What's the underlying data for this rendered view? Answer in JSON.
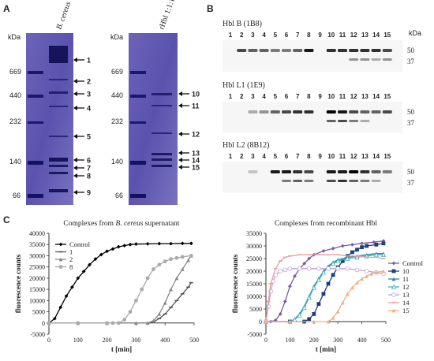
{
  "panel_labels": {
    "a": "A",
    "b": "B",
    "c": "C"
  },
  "gel_a": {
    "kda_label": "kDa",
    "markers": [
      "669",
      "440",
      "232",
      "140",
      "66"
    ],
    "left_lane_label": "B. cereus",
    "right_lane_label": "rHbl 1:1:1",
    "left_bands": [
      "1",
      "2",
      "3",
      "4",
      "5",
      "6",
      "7",
      "8",
      "9"
    ],
    "right_bands": [
      "10",
      "11",
      "12",
      "13",
      "14",
      "15"
    ]
  },
  "blots": [
    {
      "title": "Hbl B (1B8)",
      "lanes": [
        "1",
        "2",
        "3",
        "4",
        "5",
        "6",
        "7",
        "8",
        "9",
        "10",
        "11",
        "12",
        "13",
        "14",
        "15"
      ],
      "markers": [
        "50",
        "37"
      ],
      "kda_label": "kDa"
    },
    {
      "title": "Hbl L1 (1E9)",
      "lanes": [
        "1",
        "2",
        "3",
        "4",
        "5",
        "6",
        "7",
        "8",
        "9",
        "10",
        "11",
        "12",
        "13",
        "14",
        "15"
      ],
      "markers": [
        "50",
        "37"
      ]
    },
    {
      "title": "Hbl L2 (8B12)",
      "lanes": [
        "1",
        "2",
        "3",
        "4",
        "5",
        "6",
        "7",
        "8",
        "9",
        "10",
        "11",
        "12",
        "13",
        "14",
        "15"
      ],
      "markers": [
        "50",
        "37"
      ]
    }
  ],
  "chart_data": [
    {
      "type": "line",
      "title_prefix": "Complexes from ",
      "title_italic": "B. cereus",
      "title_suffix": " supernatant",
      "xlabel": "t [min]",
      "ylabel": "fluorescence counts",
      "xlim": [
        0,
        500
      ],
      "ylim": [
        -5000,
        40000
      ],
      "xticks": [
        0,
        100,
        200,
        300,
        400,
        500
      ],
      "yticks": [
        -5000,
        0,
        5000,
        10000,
        15000,
        20000,
        25000,
        30000,
        35000,
        40000
      ],
      "legend_position": "top-left",
      "series": [
        {
          "name": "Control",
          "color": "#000000",
          "marker": "diamond",
          "x": [
            0,
            20,
            40,
            60,
            80,
            100,
            120,
            140,
            160,
            180,
            200,
            220,
            240,
            260,
            280,
            300,
            340,
            380,
            420,
            460,
            490
          ],
          "y": [
            0,
            2000,
            7000,
            12000,
            16000,
            20000,
            23000,
            26000,
            28500,
            30500,
            32000,
            33000,
            34000,
            34500,
            35000,
            35200,
            35300,
            35400,
            35400,
            35500,
            35500
          ]
        },
        {
          "name": "1",
          "color": "#555555",
          "marker": "dash",
          "x": [
            0,
            100,
            200,
            300,
            340,
            360,
            380,
            400,
            420,
            440,
            460,
            480,
            490
          ],
          "y": [
            0,
            0,
            0,
            0,
            0,
            500,
            2000,
            4000,
            7000,
            10000,
            13000,
            16000,
            18000
          ]
        },
        {
          "name": "2",
          "color": "#888888",
          "marker": "triangle",
          "x": [
            0,
            100,
            200,
            300,
            340,
            360,
            380,
            400,
            420,
            440,
            460,
            480,
            490
          ],
          "y": [
            0,
            0,
            0,
            0,
            0,
            1000,
            4000,
            9000,
            15000,
            20000,
            24000,
            28000,
            30000
          ]
        },
        {
          "name": "8",
          "color": "#aaaaaa",
          "marker": "circle",
          "x": [
            0,
            100,
            200,
            220,
            240,
            260,
            280,
            300,
            320,
            340,
            360,
            380,
            400,
            420,
            440,
            460,
            490
          ],
          "y": [
            0,
            0,
            0,
            0,
            0,
            1500,
            5000,
            10000,
            15000,
            20000,
            24000,
            26000,
            27500,
            28500,
            29000,
            29500,
            30000
          ]
        }
      ]
    },
    {
      "type": "line",
      "title": "Complexes from recombinant Hbl",
      "xlabel": "t [min]",
      "ylabel": "fluorescence counts",
      "xlim": [
        0,
        500
      ],
      "ylim": [
        -5000,
        35000
      ],
      "xticks": [
        0,
        100,
        200,
        300,
        400,
        500
      ],
      "yticks": [
        -5000,
        0,
        5000,
        10000,
        15000,
        20000,
        25000,
        30000,
        35000
      ],
      "legend_position": "right",
      "series": [
        {
          "name": "Control",
          "color": "#7a5ca8",
          "marker": "diamond",
          "x": [
            0,
            20,
            40,
            60,
            80,
            100,
            120,
            140,
            160,
            180,
            200,
            240,
            280,
            320,
            360,
            400,
            450,
            490
          ],
          "y": [
            0,
            0,
            500,
            3000,
            8000,
            14000,
            18000,
            21000,
            23000,
            25000,
            26500,
            28000,
            29000,
            30000,
            30500,
            31000,
            31500,
            32000
          ]
        },
        {
          "name": "10",
          "color": "#1f3f7a",
          "marker": "square",
          "x": [
            0,
            100,
            160,
            180,
            200,
            220,
            240,
            260,
            280,
            300,
            320,
            340,
            360,
            380,
            400,
            420,
            460,
            490
          ],
          "y": [
            0,
            0,
            0,
            1000,
            3000,
            7000,
            11000,
            15000,
            18500,
            21500,
            24000,
            26000,
            27500,
            28500,
            29500,
            30000,
            30500,
            31000
          ]
        },
        {
          "name": "11",
          "color": "#2a8aa0",
          "marker": "triangle",
          "x": [
            0,
            100,
            120,
            140,
            160,
            180,
            200,
            220,
            240,
            260,
            280,
            300,
            340,
            380,
            420,
            460,
            490
          ],
          "y": [
            0,
            0,
            1000,
            3000,
            6000,
            10000,
            14000,
            17000,
            20000,
            22000,
            23500,
            24500,
            25500,
            26000,
            26500,
            27000,
            27000
          ]
        },
        {
          "name": "12",
          "color": "#40b0c0",
          "marker": "triangle-open",
          "x": [
            0,
            100,
            120,
            140,
            160,
            180,
            200,
            220,
            240,
            260,
            280,
            300,
            340,
            380,
            420,
            460,
            490
          ],
          "y": [
            0,
            0,
            800,
            2500,
            5500,
            9500,
            13500,
            16500,
            19500,
            21500,
            23000,
            24000,
            25000,
            25500,
            26000,
            26500,
            26500
          ]
        },
        {
          "name": "13",
          "color": "#c0a0d8",
          "marker": "circle-open",
          "x": [
            0,
            10,
            20,
            30,
            40,
            60,
            80,
            100,
            140,
            180,
            220,
            260,
            300,
            340,
            380,
            420,
            460,
            490
          ],
          "y": [
            0,
            6000,
            12000,
            16000,
            18500,
            20000,
            20500,
            21000,
            21000,
            21000,
            21000,
            21000,
            21000,
            21000,
            20500,
            20000,
            19500,
            19000
          ]
        },
        {
          "name": "14",
          "color": "#e8a0a0",
          "marker": "dash",
          "x": [
            0,
            10,
            20,
            40,
            60,
            80,
            100,
            140,
            180,
            220,
            260,
            300,
            340,
            380,
            420,
            460,
            490
          ],
          "y": [
            0,
            8000,
            15000,
            21000,
            24000,
            25500,
            26000,
            26500,
            26500,
            26500,
            26500,
            26500,
            26000,
            26000,
            25500,
            25500,
            25000
          ]
        },
        {
          "name": "15",
          "color": "#f0b080",
          "marker": "triangle",
          "x": [
            0,
            100,
            200,
            260,
            280,
            300,
            320,
            340,
            360,
            380,
            400,
            420,
            440,
            460,
            490
          ],
          "y": [
            0,
            0,
            0,
            0,
            1500,
            4000,
            7500,
            11000,
            13500,
            15500,
            17000,
            18000,
            19000,
            19500,
            20000
          ]
        }
      ]
    }
  ]
}
